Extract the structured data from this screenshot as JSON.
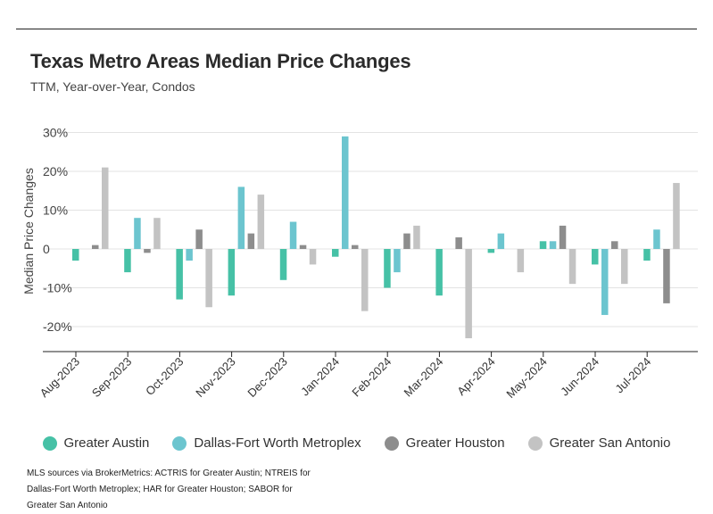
{
  "header": {
    "title": "Texas Metro Areas Median Price Changes",
    "subtitle": "TTM, Year-over-Year, Condos"
  },
  "source_note": "MLS sources via BrokerMetrics: ACTRIS for Greater Austin; NTREIS for Dallas-Fort Worth Metroplex; HAR for Greater Houston; SABOR for Greater San Antonio",
  "chart_data": {
    "type": "bar",
    "title": "Texas Metro Areas Median Price Changes",
    "subtitle": "TTM, Year-over-Year, Condos",
    "xlabel": "",
    "ylabel": "Median Price Changes",
    "ylim": [
      -26,
      32
    ],
    "yticks": [
      -20,
      -10,
      0,
      10,
      20,
      30
    ],
    "ytick_labels": [
      "-20%",
      "-10%",
      "0",
      "10%",
      "20%",
      "30%"
    ],
    "grid": true,
    "legend_position": "bottom",
    "categories": [
      "Aug-2023",
      "Sep-2023",
      "Oct-2023",
      "Nov-2023",
      "Dec-2023",
      "Jan-2024",
      "Feb-2024",
      "Mar-2024",
      "Apr-2024",
      "May-2024",
      "Jun-2024",
      "Jul-2024"
    ],
    "series": [
      {
        "name": "Greater Austin",
        "color": "#46c1a6",
        "values": [
          -3,
          -6,
          -13,
          -12,
          -8,
          -2,
          -10,
          -12,
          -1,
          2,
          -4,
          -3
        ]
      },
      {
        "name": "Dallas-Fort Worth Metroplex",
        "color": "#6cc5cf",
        "values": [
          0,
          8,
          -3,
          16,
          7,
          29,
          -6,
          0,
          4,
          2,
          -17,
          5
        ]
      },
      {
        "name": "Greater Houston",
        "color": "#8d8d8d",
        "values": [
          1,
          -1,
          5,
          4,
          1,
          1,
          4,
          3,
          0,
          6,
          2,
          -14
        ]
      },
      {
        "name": "Greater San Antonio",
        "color": "#c3c3c3",
        "values": [
          21,
          8,
          -15,
          14,
          -4,
          -16,
          6,
          -23,
          -6,
          -9,
          -9,
          17
        ]
      }
    ]
  }
}
